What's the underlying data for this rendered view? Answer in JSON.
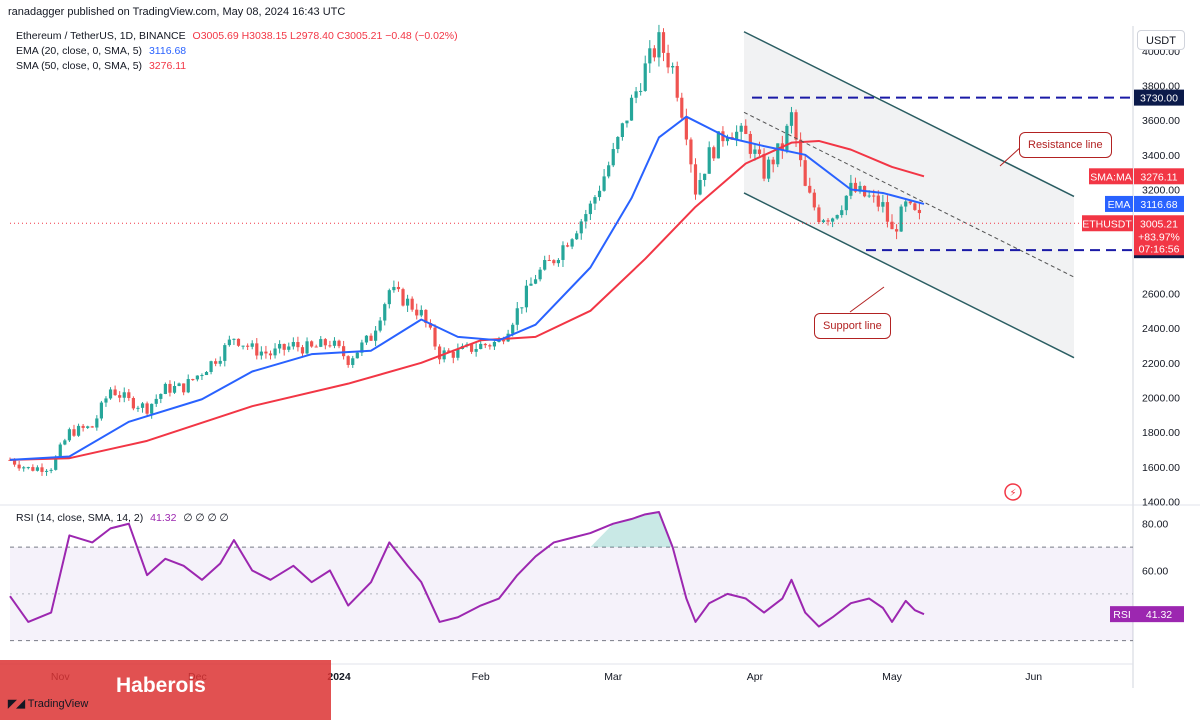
{
  "header": {
    "publisher": "ranadagger published on TradingView.com, May 08, 2024 16:43 UTC"
  },
  "legend": {
    "symbol": "Ethereum / TetherUS, 1D, BINANCE",
    "ohlc": "O3005.69 H3038.15 L2978.40 C3005.21 −0.48 (−0.02%)",
    "ema_label": "EMA (20, close, 0, SMA, 5)",
    "ema_value": "3116.68",
    "sma_label": "SMA (50, close, 0, SMA, 5)",
    "sma_value": "3276.11",
    "rsi_label": "RSI (14, close, SMA, 14, 2)",
    "rsi_value": "41.32",
    "rsi_extra": "∅ ∅ ∅ ∅"
  },
  "currency": "USDT",
  "annotations": {
    "resistance": "Resistance line",
    "support": "Support line"
  },
  "watermark": "Haberois",
  "branding": "TradingView",
  "colors": {
    "up": "#26a69a",
    "down": "#ef5350",
    "ema": "#2962ff",
    "sma": "#f23645",
    "rsi": "#9c27b0",
    "channel": "#2a5d62",
    "level": "#1a1aa6"
  },
  "chart_data": {
    "type": "candlestick",
    "y_ticks": [
      "4000.00",
      "3800.00",
      "3600.00",
      "3400.00",
      "3200.00",
      "2600.00",
      "2400.00",
      "2200.00",
      "2000.00",
      "1800.00",
      "1600.00",
      "1400.00"
    ],
    "ylim": [
      1380,
      4120
    ],
    "x_ticks": [
      "Nov",
      "Dec",
      "2024",
      "Feb",
      "Mar",
      "Apr",
      "May",
      "Jun"
    ],
    "levels": [
      {
        "label": "3730.00",
        "value": 3730
      },
      {
        "label": "2850.00",
        "value": 2850
      }
    ],
    "price_tags": {
      "sma": {
        "label": "SMA:MA",
        "value": "3276.11",
        "price": 3276.11
      },
      "ema": {
        "label": "EMA",
        "value": "3116.68",
        "price": 3116.68
      },
      "last": {
        "label": "ETHUSDT",
        "value": "3005.21",
        "change": "+83.97%",
        "countdown": "07:16:56",
        "price": 3005.21
      }
    },
    "channel": {
      "upper": [
        [
          0,
          4110
        ],
        [
          1,
          3160
        ]
      ],
      "lower": [
        [
          0,
          3180
        ],
        [
          1,
          2230
        ]
      ],
      "mid": [
        [
          0,
          3645
        ],
        [
          1,
          2695
        ]
      ]
    },
    "close_points": [
      [
        "Oct 21",
        1640
      ],
      [
        "Oct 25",
        1590
      ],
      [
        "Oct 30",
        1600
      ],
      [
        "Nov 3",
        1800
      ],
      [
        "Nov 8",
        1830
      ],
      [
        "Nov 12",
        2050
      ],
      [
        "Nov 16",
        1980
      ],
      [
        "Nov 20",
        1940
      ],
      [
        "Nov 24",
        2050
      ],
      [
        "Nov 28",
        2060
      ],
      [
        "Dec 2",
        2150
      ],
      [
        "Dec 6",
        2250
      ],
      [
        "Dec 9",
        2350
      ],
      [
        "Dec 13",
        2280
      ],
      [
        "Dec 17",
        2250
      ],
      [
        "Dec 22",
        2300
      ],
      [
        "Dec 26",
        2280
      ],
      [
        "Dec 30",
        2320
      ],
      [
        "Jan 3",
        2220
      ],
      [
        "Jan 8",
        2350
      ],
      [
        "Jan 12",
        2620
      ],
      [
        "Jan 16",
        2550
      ],
      [
        "Jan 19",
        2480
      ],
      [
        "Jan 23",
        2250
      ],
      [
        "Jan 27",
        2260
      ],
      [
        "Feb 1",
        2300
      ],
      [
        "Feb 5",
        2320
      ],
      [
        "Feb 9",
        2500
      ],
      [
        "Feb 13",
        2700
      ],
      [
        "Feb 17",
        2800
      ],
      [
        "Feb 21",
        2950
      ],
      [
        "Feb 25",
        3100
      ],
      [
        "Mar 1",
        3400
      ],
      [
        "Mar 5",
        3700
      ],
      [
        "Mar 8",
        3900
      ],
      [
        "Mar 11",
        4050
      ],
      [
        "Mar 14",
        3900
      ],
      [
        "Mar 17",
        3550
      ],
      [
        "Mar 19",
        3200
      ],
      [
        "Mar 22",
        3400
      ],
      [
        "Mar 26",
        3550
      ],
      [
        "Mar 30",
        3500
      ],
      [
        "Apr 3",
        3300
      ],
      [
        "Apr 7",
        3450
      ],
      [
        "Apr 9",
        3620
      ],
      [
        "Apr 12",
        3200
      ],
      [
        "Apr 15",
        3050
      ],
      [
        "Apr 18",
        3050
      ],
      [
        "Apr 22",
        3200
      ],
      [
        "Apr 26",
        3150
      ],
      [
        "Apr 29",
        3100
      ],
      [
        "May 1",
        2950
      ],
      [
        "May 4",
        3100
      ],
      [
        "May 6",
        3050
      ],
      [
        "May 8",
        3005
      ]
    ],
    "ema_points": [
      [
        "Oct 21",
        1640
      ],
      [
        "Nov 3",
        1660
      ],
      [
        "Nov 16",
        1860
      ],
      [
        "Dec 2",
        1990
      ],
      [
        "Dec 13",
        2150
      ],
      [
        "Dec 26",
        2250
      ],
      [
        "Jan 8",
        2270
      ],
      [
        "Jan 19",
        2450
      ],
      [
        "Jan 27",
        2350
      ],
      [
        "Feb 5",
        2330
      ],
      [
        "Feb 13",
        2420
      ],
      [
        "Feb 25",
        2750
      ],
      [
        "Mar 5",
        3150
      ],
      [
        "Mar 11",
        3500
      ],
      [
        "Mar 17",
        3620
      ],
      [
        "Mar 26",
        3500
      ],
      [
        "Apr 3",
        3450
      ],
      [
        "Apr 12",
        3400
      ],
      [
        "Apr 22",
        3200
      ],
      [
        "Apr 29",
        3180
      ],
      [
        "May 8",
        3116.68
      ]
    ],
    "sma_points": [
      [
        "Oct 21",
        1640
      ],
      [
        "Nov 3",
        1650
      ],
      [
        "Nov 20",
        1750
      ],
      [
        "Dec 13",
        1950
      ],
      [
        "Jan 3",
        2080
      ],
      [
        "Jan 19",
        2200
      ],
      [
        "Feb 1",
        2330
      ],
      [
        "Feb 13",
        2350
      ],
      [
        "Feb 25",
        2500
      ],
      [
        "Mar 8",
        2800
      ],
      [
        "Mar 19",
        3100
      ],
      [
        "Mar 30",
        3350
      ],
      [
        "Apr 9",
        3470
      ],
      [
        "Apr 15",
        3480
      ],
      [
        "Apr 22",
        3430
      ],
      [
        "May 1",
        3330
      ],
      [
        "May 8",
        3276.11
      ]
    ],
    "rsi": {
      "ticks": [
        "80.00",
        "60.00"
      ],
      "ylim": [
        20,
        88
      ],
      "band": [
        30,
        70
      ],
      "mid": 50,
      "points": [
        [
          "Oct 21",
          49
        ],
        [
          "Oct 25",
          38
        ],
        [
          "Oct 30",
          42
        ],
        [
          "Nov 3",
          75
        ],
        [
          "Nov 8",
          72
        ],
        [
          "Nov 12",
          78
        ],
        [
          "Nov 16",
          80
        ],
        [
          "Nov 20",
          58
        ],
        [
          "Nov 24",
          65
        ],
        [
          "Nov 28",
          62
        ],
        [
          "Dec 2",
          56
        ],
        [
          "Dec 6",
          63
        ],
        [
          "Dec 9",
          73
        ],
        [
          "Dec 13",
          60
        ],
        [
          "Dec 17",
          56
        ],
        [
          "Dec 22",
          62
        ],
        [
          "Dec 26",
          55
        ],
        [
          "Dec 30",
          60
        ],
        [
          "Jan 3",
          45
        ],
        [
          "Jan 8",
          55
        ],
        [
          "Jan 12",
          72
        ],
        [
          "Jan 16",
          62
        ],
        [
          "Jan 19",
          55
        ],
        [
          "Jan 23",
          38
        ],
        [
          "Jan 27",
          40
        ],
        [
          "Feb 1",
          45
        ],
        [
          "Feb 5",
          48
        ],
        [
          "Feb 9",
          58
        ],
        [
          "Feb 13",
          66
        ],
        [
          "Feb 17",
          72
        ],
        [
          "Feb 21",
          74
        ],
        [
          "Feb 25",
          76
        ],
        [
          "Mar 1",
          80
        ],
        [
          "Mar 5",
          82
        ],
        [
          "Mar 8",
          84
        ],
        [
          "Mar 11",
          85
        ],
        [
          "Mar 14",
          70
        ],
        [
          "Mar 17",
          48
        ],
        [
          "Mar 19",
          38
        ],
        [
          "Mar 22",
          46
        ],
        [
          "Mar 26",
          50
        ],
        [
          "Mar 30",
          48
        ],
        [
          "Apr 3",
          42
        ],
        [
          "Apr 7",
          48
        ],
        [
          "Apr 9",
          56
        ],
        [
          "Apr 12",
          42
        ],
        [
          "Apr 15",
          36
        ],
        [
          "Apr 18",
          40
        ],
        [
          "Apr 22",
          46
        ],
        [
          "Apr 26",
          48
        ],
        [
          "Apr 29",
          44
        ],
        [
          "May 1",
          38
        ],
        [
          "May 4",
          47
        ],
        [
          "May 6",
          43
        ],
        [
          "May 8",
          41.32
        ]
      ]
    }
  }
}
